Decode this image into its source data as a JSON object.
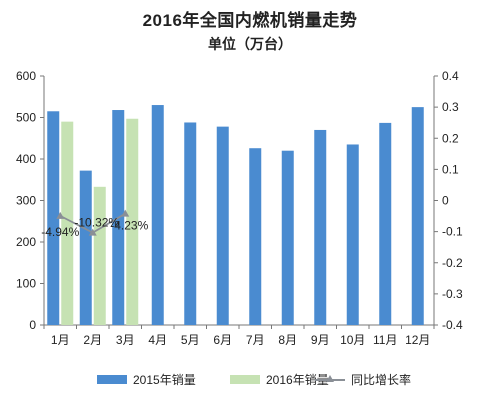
{
  "chart_data": {
    "type": "bar",
    "title": "2016年全国内燃机销量走势",
    "subtitle": "单位（万台）",
    "categories": [
      "1月",
      "2月",
      "3月",
      "4月",
      "5月",
      "6月",
      "7月",
      "8月",
      "9月",
      "10月",
      "11月",
      "12月"
    ],
    "series": [
      {
        "name": "2015年销量",
        "type": "bar",
        "axis": "left",
        "color": "#4a8bd0",
        "values": [
          515,
          372,
          518,
          530,
          488,
          478,
          426,
          420,
          470,
          435,
          487,
          525
        ]
      },
      {
        "name": "2016年销量",
        "type": "bar",
        "axis": "left",
        "color": "#c6e2b3",
        "values": [
          490,
          333,
          497,
          null,
          null,
          null,
          null,
          null,
          null,
          null,
          null,
          null
        ]
      },
      {
        "name": "同比增长率",
        "type": "line",
        "axis": "right",
        "color": "#8a8f96",
        "values": [
          -0.0494,
          -0.1032,
          -0.0423,
          null,
          null,
          null,
          null,
          null,
          null,
          null,
          null,
          null
        ],
        "data_labels": [
          "-4.94%",
          "-10.32%",
          "-4.23%"
        ]
      }
    ],
    "ylim": [
      0,
      600
    ],
    "yticks": [
      "0",
      "100",
      "200",
      "300",
      "400",
      "500",
      "600"
    ],
    "y2lim": [
      -0.4,
      0.4
    ],
    "y2ticks": [
      "-0.4",
      "-0.3",
      "-0.2",
      "-0.1",
      "0",
      "0.1",
      "0.2",
      "0.3",
      "0.4"
    ],
    "grid": false,
    "legend_position": "bottom"
  }
}
